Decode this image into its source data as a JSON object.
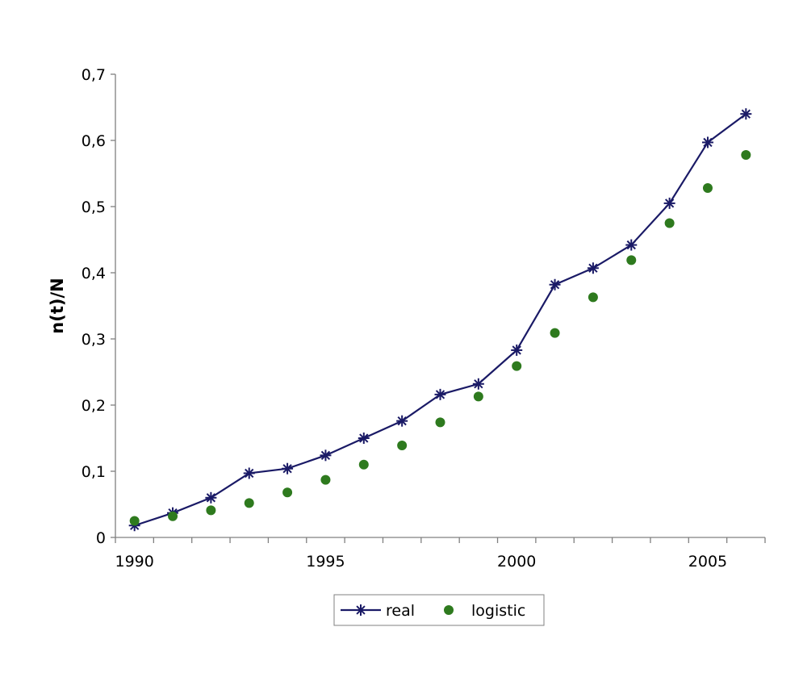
{
  "chart_data": {
    "type": "line",
    "title": "",
    "xlabel": "",
    "ylabel": "n(t)/N",
    "xlim": [
      1989.5,
      2006.5
    ],
    "ylim": [
      0,
      0.7
    ],
    "x_ticks": [
      1990,
      1995,
      2000,
      2005
    ],
    "x_tick_labels": [
      "1990",
      "1995",
      "2000",
      "2005"
    ],
    "y_ticks": [
      0,
      0.1,
      0.2,
      0.3,
      0.4,
      0.5,
      0.6,
      0.7
    ],
    "y_tick_labels": [
      "0",
      "0,1",
      "0,2",
      "0,3",
      "0,4",
      "0,5",
      "0,6",
      "0,7"
    ],
    "grid": false,
    "legend_position": "bottom",
    "x": [
      1990,
      1991,
      1992,
      1993,
      1994,
      1995,
      1996,
      1997,
      1998,
      1999,
      2000,
      2001,
      2002,
      2003,
      2004,
      2005,
      2006
    ],
    "series": [
      {
        "name": "real",
        "style": "line-asterisk",
        "color": "#1a1a66",
        "values": [
          0.018,
          0.037,
          0.06,
          0.097,
          0.104,
          0.124,
          0.15,
          0.176,
          0.216,
          0.232,
          0.283,
          0.382,
          0.407,
          0.442,
          0.505,
          0.597,
          0.64
        ]
      },
      {
        "name": "logistic",
        "style": "dot",
        "color": "#2e7a1e",
        "values": [
          0.025,
          0.032,
          0.041,
          0.052,
          0.068,
          0.087,
          0.11,
          0.139,
          0.174,
          0.213,
          0.259,
          0.309,
          0.363,
          0.419,
          0.475,
          0.528,
          0.578
        ]
      }
    ]
  }
}
